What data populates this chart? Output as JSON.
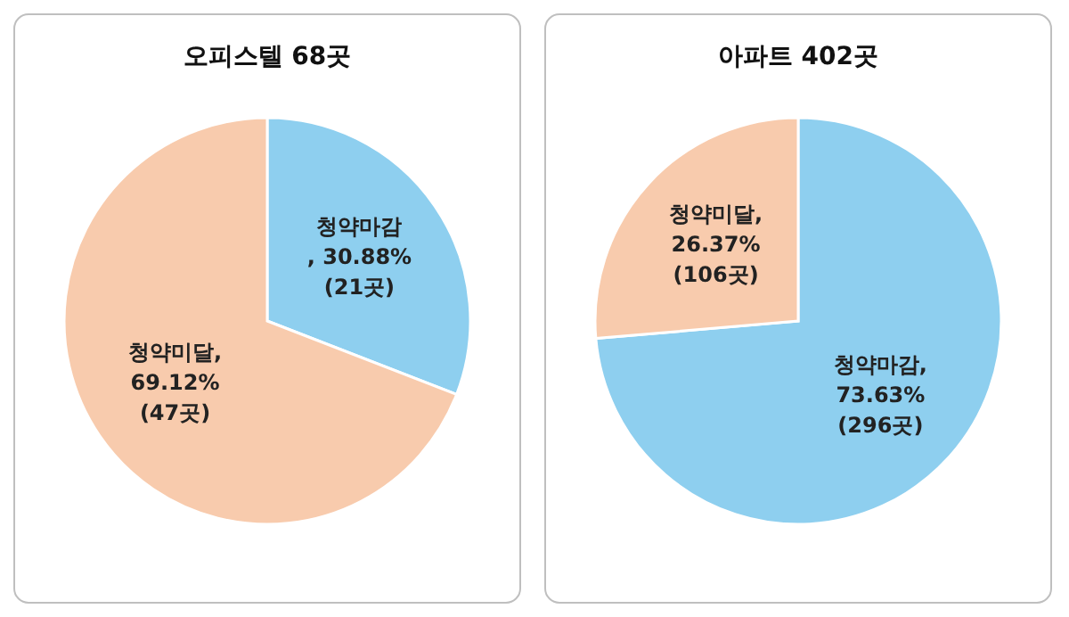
{
  "chart_data": [
    {
      "type": "pie",
      "title": "오피스텔 68곳",
      "categories": [
        "청약마감",
        "청약미달"
      ],
      "values": [
        30.88,
        69.12
      ],
      "colors": [
        "#8ecfef",
        "#f8cbad"
      ],
      "value_labels": [
        "\n, 30.88%\n(21곳)",
        ",\n69.12%\n(47곳)"
      ]
    },
    {
      "type": "pie",
      "title": "아파트 402곳",
      "categories": [
        "청약마감",
        "청약미달"
      ],
      "values": [
        73.63,
        26.37
      ],
      "colors": [
        "#8ecfef",
        "#f8cbad"
      ],
      "value_labels": [
        ",\n73.63%\n(296곳)",
        ",\n26.37%\n(106곳)"
      ]
    }
  ]
}
